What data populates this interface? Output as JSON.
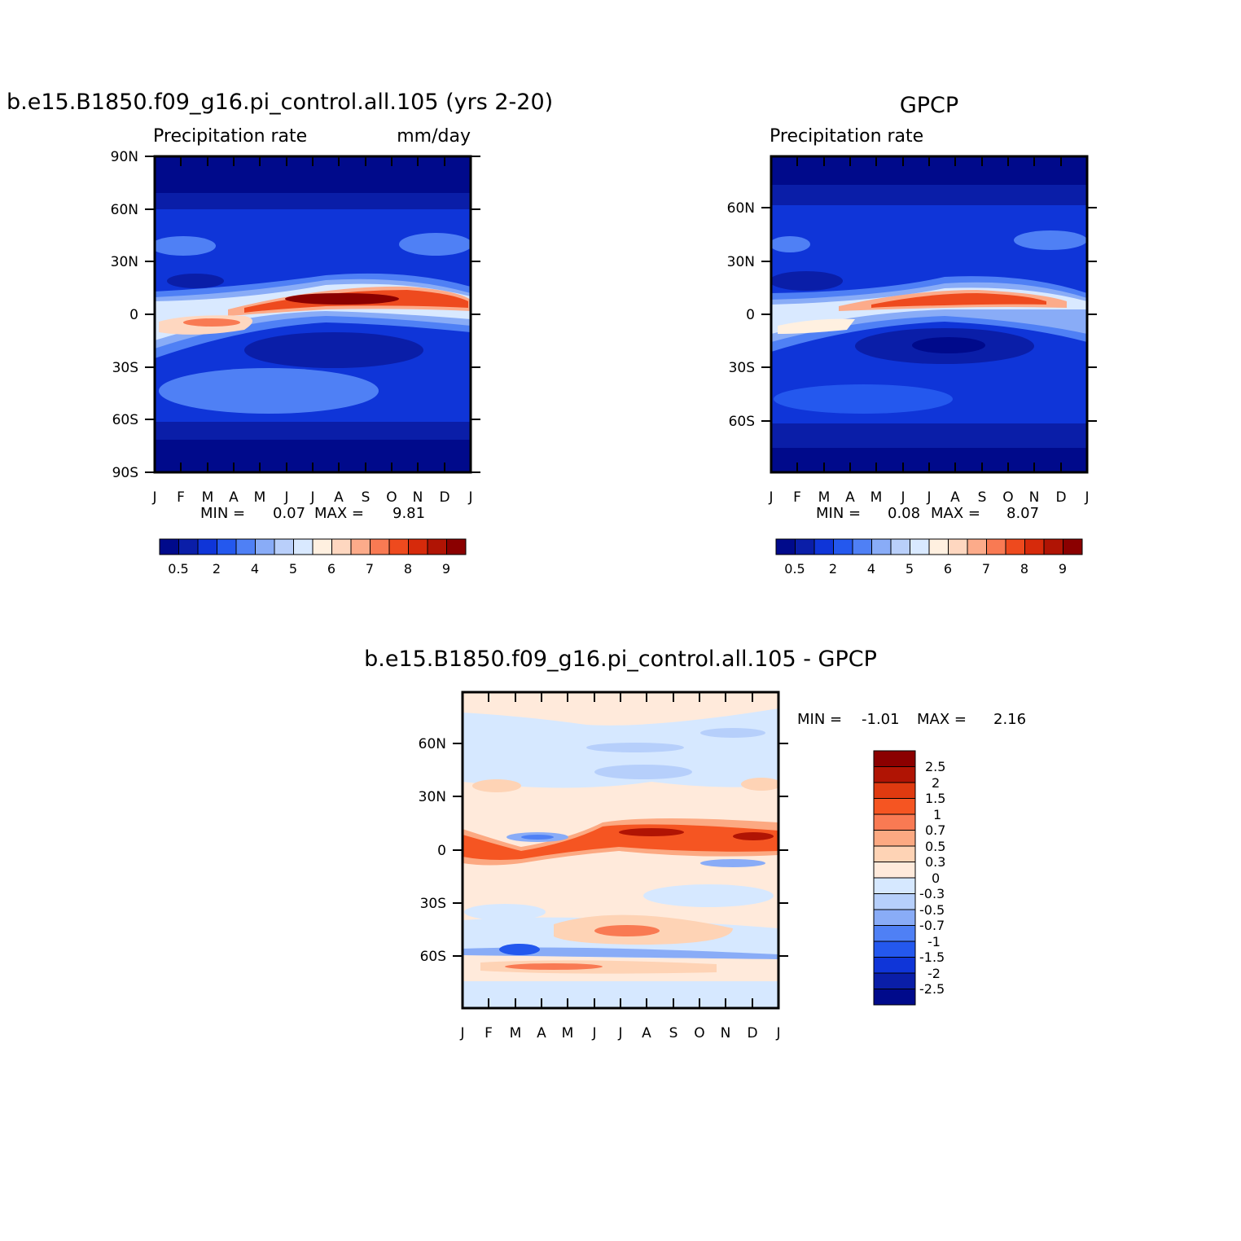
{
  "chart_data": [
    {
      "type": "heatmap",
      "title": "b.e15.B1850.f09_g16.pi_control.all.105 (yrs 2-20)",
      "subtitle_left": "Precipitation rate",
      "subtitle_right": "mm/day",
      "x_ticks": [
        "J",
        "F",
        "M",
        "A",
        "M",
        "J",
        "J",
        "A",
        "S",
        "O",
        "N",
        "D",
        "J"
      ],
      "y_ticks": [
        "90N",
        "60N",
        "30N",
        "0",
        "30S",
        "60S",
        "90S"
      ],
      "min_label": "MIN =",
      "min_value": "0.07",
      "max_label": "MAX =",
      "max_value": "9.81",
      "colorbar_labels": [
        "0.5",
        "2",
        "4",
        "5",
        "6",
        "7",
        "8",
        "9"
      ],
      "colors": [
        "#000a8b",
        "#0a1ea8",
        "#0f35d8",
        "#2458ee",
        "#4f80f5",
        "#89acf7",
        "#b9cffa",
        "#d9e9ff",
        "#fff0e0",
        "#fed7c0",
        "#fcab8a",
        "#f97a53",
        "#ee4a1e",
        "#d62a0b",
        "#b01404",
        "#8b0000"
      ],
      "levels": [
        0.5,
        1,
        2,
        3,
        4,
        4.5,
        5,
        5.5,
        6,
        6.5,
        7,
        7.5,
        8,
        8.5,
        9
      ]
    },
    {
      "type": "heatmap",
      "title": "GPCP",
      "subtitle_left": "Precipitation rate",
      "x_ticks": [
        "J",
        "F",
        "M",
        "A",
        "M",
        "J",
        "J",
        "A",
        "S",
        "O",
        "N",
        "D",
        "J"
      ],
      "y_ticks": [
        "60N",
        "30N",
        "0",
        "30S",
        "60S"
      ],
      "min_label": "MIN =",
      "min_value": "0.08",
      "max_label": "MAX =",
      "max_value": "8.07",
      "colorbar_labels": [
        "0.5",
        "2",
        "4",
        "5",
        "6",
        "7",
        "8",
        "9"
      ]
    },
    {
      "type": "heatmap",
      "title": "b.e15.B1850.f09_g16.pi_control.all.105 - GPCP",
      "x_ticks": [
        "J",
        "F",
        "M",
        "A",
        "M",
        "J",
        "J",
        "A",
        "S",
        "O",
        "N",
        "D",
        "J"
      ],
      "y_ticks": [
        "60N",
        "30N",
        "0",
        "30S",
        "60S"
      ],
      "min_label": "MIN =",
      "min_value": "-1.01",
      "max_label": "MAX =",
      "max_value": "2.16",
      "colorbar_labels": [
        "2.5",
        "2",
        "1.5",
        "1",
        "0.7",
        "0.5",
        "0.3",
        "0",
        "-0.3",
        "-0.5",
        "-0.7",
        "-1",
        "-1.5",
        "-2",
        "-2.5"
      ],
      "colors": [
        "#8b0000",
        "#b01404",
        "#df3a10",
        "#f55522",
        "#f97a53",
        "#fca982",
        "#fed3b5",
        "#ffeadb",
        "#d6e8ff",
        "#b6cffb",
        "#89acf7",
        "#4f80f5",
        "#2458ee",
        "#0f35d8",
        "#0a1ea8",
        "#000a8b"
      ]
    }
  ]
}
